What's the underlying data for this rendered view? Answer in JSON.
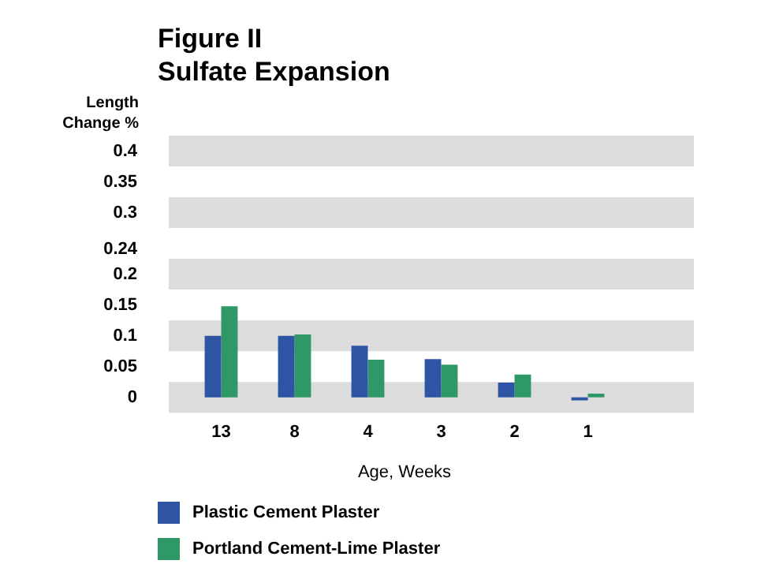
{
  "chart_data": {
    "type": "bar",
    "title": "Figure II\nSulfate Expansion",
    "ylabel": "Length\nChange %",
    "xlabel": "Age, Weeks",
    "categories": [
      "13",
      "8",
      "4",
      "3",
      "2",
      "1"
    ],
    "series": [
      {
        "name": "Plastic Cement Plaster",
        "color": "#2e55a3",
        "values": [
          0.1,
          0.1,
          0.084,
          0.062,
          0.024,
          -0.005
        ]
      },
      {
        "name": "Portland Cement-Lime Plaster",
        "color": "#2e9966",
        "values": [
          0.148,
          0.102,
          0.061,
          0.053,
          0.037,
          0.006
        ]
      }
    ],
    "ylim": [
      -0.025,
      0.425
    ],
    "yticks": [
      0,
      0.05,
      0.1,
      0.15,
      0.2,
      0.24,
      0.3,
      0.35,
      0.4
    ],
    "bands": [
      {
        "axis": "y",
        "from": -0.025,
        "to": 0.025,
        "color": "#dcdcdc"
      },
      {
        "axis": "y",
        "from": 0.075,
        "to": 0.125,
        "color": "#dcdcdc"
      },
      {
        "axis": "y",
        "from": 0.175,
        "to": 0.225,
        "color": "#dcdcdc"
      },
      {
        "axis": "y",
        "from": 0.275,
        "to": 0.325,
        "color": "#dcdcdc"
      },
      {
        "axis": "y",
        "from": 0.375,
        "to": 0.425,
        "color": "#dcdcdc"
      }
    ],
    "legend": "bottom left"
  }
}
